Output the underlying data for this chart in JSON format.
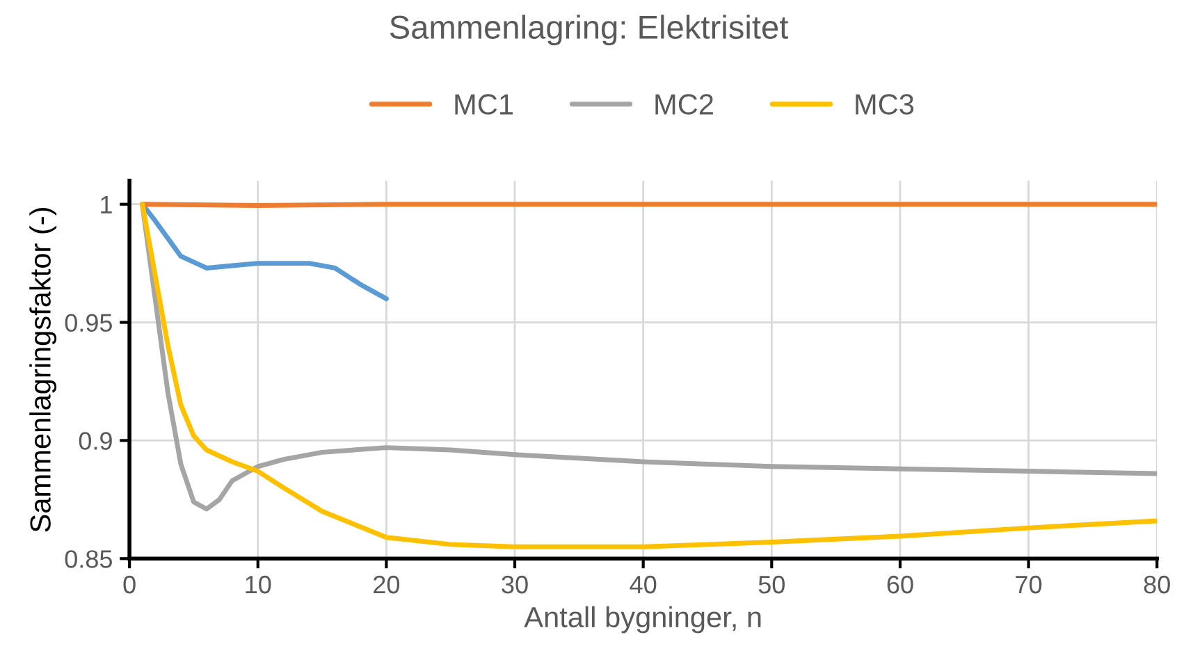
{
  "chart_data": {
    "type": "line",
    "title": "Sammenlagring: Elektrisitet",
    "xlabel": "Antall bygninger, n",
    "ylabel": "Sammenlagringsfaktor (-)",
    "xlim": [
      0,
      80
    ],
    "xticks": [
      0,
      10,
      20,
      30,
      40,
      50,
      60,
      70,
      80
    ],
    "ylim": [
      0.85,
      1.01
    ],
    "yticks": [
      0.85,
      0.9,
      0.95,
      1
    ],
    "grid": true,
    "legend": "top",
    "line_style": "solid",
    "marker": "none",
    "series": [
      {
        "color": "#5b9bd5",
        "x": [
          1,
          2,
          4,
          6,
          8,
          10,
          12,
          14,
          16,
          18,
          20
        ],
        "values": [
          1,
          0.993,
          0.978,
          0.973,
          0.974,
          0.975,
          0.975,
          0.975,
          0.973,
          0.966,
          0.96
        ]
      },
      {
        "name": "MC1",
        "color": "#ed7d31",
        "x": [
          1,
          10,
          20,
          30,
          40,
          50,
          60,
          70,
          80
        ],
        "values": [
          1,
          0.9995,
          1,
          1,
          1,
          1,
          1,
          1,
          1
        ]
      },
      {
        "name": "MC2",
        "color": "#a5a5a5",
        "x": [
          1,
          2,
          3,
          4,
          5,
          6,
          7,
          8,
          10,
          12,
          15,
          20,
          25,
          30,
          40,
          50,
          60,
          70,
          80
        ],
        "values": [
          1,
          0.96,
          0.92,
          0.89,
          0.874,
          0.871,
          0.875,
          0.883,
          0.889,
          0.892,
          0.895,
          0.897,
          0.896,
          0.894,
          0.891,
          0.889,
          0.888,
          0.887,
          0.886
        ]
      },
      {
        "name": "MC3",
        "color": "#ffc000",
        "x": [
          1,
          2,
          3,
          4,
          5,
          6,
          8,
          10,
          12,
          15,
          20,
          25,
          30,
          40,
          50,
          60,
          70,
          80
        ],
        "values": [
          1,
          0.97,
          0.94,
          0.915,
          0.902,
          0.896,
          0.891,
          0.887,
          0.88,
          0.87,
          0.859,
          0.856,
          0.855,
          0.855,
          0.857,
          0.8595,
          0.863,
          0.866
        ]
      }
    ]
  }
}
